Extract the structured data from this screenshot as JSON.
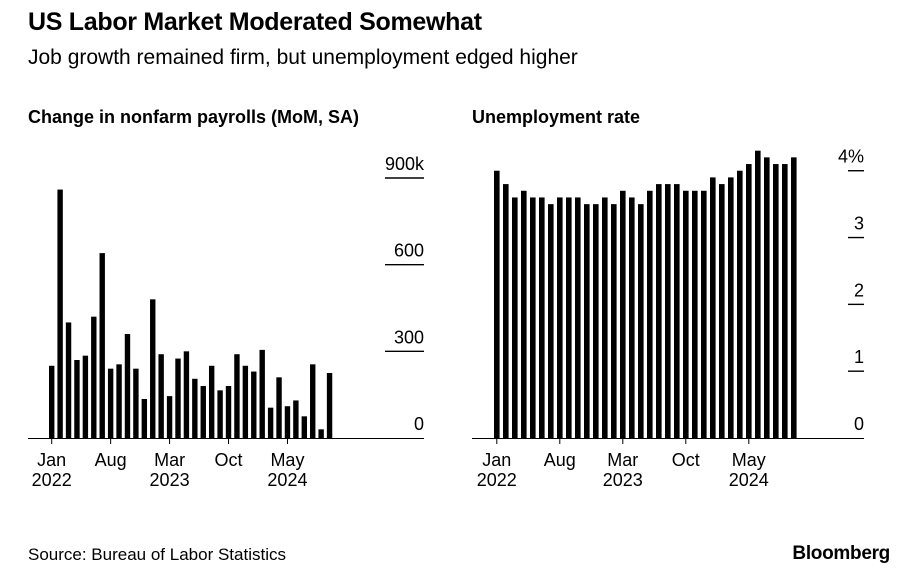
{
  "header": {
    "title": "US Labor Market Moderated Somewhat",
    "subtitle": "Job growth remained firm, but unemployment edged higher"
  },
  "footer": {
    "source": "Source: Bureau of Labor Statistics",
    "logo": "Bloomberg"
  },
  "chart_data": [
    {
      "type": "bar",
      "title": "Change in nonfarm payrolls (MoM, SA)",
      "xlabel": "",
      "ylabel": "",
      "ylim": [
        0,
        900
      ],
      "yticks": [
        "900k",
        "600",
        "300",
        "0"
      ],
      "ytick_values": [
        900,
        600,
        300,
        0
      ],
      "xtick_labels": [
        {
          "month": "Jan",
          "year": "2022",
          "index": 0
        },
        {
          "month": "Aug",
          "year": "",
          "index": 7
        },
        {
          "month": "Mar",
          "year": "2023",
          "index": 14
        },
        {
          "month": "Oct",
          "year": "",
          "index": 21
        },
        {
          "month": "May",
          "year": "2024",
          "index": 28
        }
      ],
      "grid": false,
      "series": [
        {
          "values": [
            250,
            860,
            400,
            270,
            285,
            420,
            640,
            240,
            255,
            360,
            240,
            135,
            480,
            290,
            145,
            275,
            300,
            205,
            180,
            250,
            165,
            180,
            290,
            250,
            230,
            305,
            105,
            210,
            110,
            130,
            75,
            255,
            30,
            225
          ]
        }
      ],
      "color": "#000000"
    },
    {
      "type": "bar",
      "title": "Unemployment rate",
      "xlabel": "",
      "ylabel": "",
      "ylim": [
        0,
        4.4
      ],
      "yticks": [
        "4%",
        "3",
        "2",
        "1",
        "0"
      ],
      "ytick_values": [
        4,
        3,
        2,
        1,
        0
      ],
      "xtick_labels": [
        {
          "month": "Jan",
          "year": "2022",
          "index": 0
        },
        {
          "month": "Aug",
          "year": "",
          "index": 7
        },
        {
          "month": "Mar",
          "year": "2023",
          "index": 14
        },
        {
          "month": "Oct",
          "year": "",
          "index": 21
        },
        {
          "month": "May",
          "year": "2024",
          "index": 28
        }
      ],
      "grid": false,
      "series": [
        {
          "values": [
            4.0,
            3.8,
            3.6,
            3.7,
            3.6,
            3.6,
            3.5,
            3.6,
            3.6,
            3.6,
            3.5,
            3.5,
            3.6,
            3.5,
            3.7,
            3.6,
            3.5,
            3.7,
            3.8,
            3.8,
            3.8,
            3.7,
            3.7,
            3.7,
            3.9,
            3.8,
            3.9,
            4.0,
            4.1,
            4.3,
            4.2,
            4.1,
            4.1,
            4.2
          ]
        }
      ],
      "color": "#000000"
    }
  ]
}
